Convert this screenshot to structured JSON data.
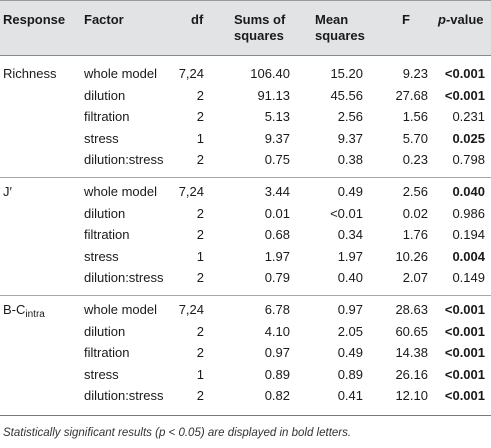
{
  "headers": {
    "response": "Response",
    "factor": "Factor",
    "df": "df",
    "ss_line1": "Sums of",
    "ss_line2": "squares",
    "ms_line1": "Mean",
    "ms_line2": "squares",
    "f": "F",
    "p_italic": "p",
    "p_rest": "-value"
  },
  "groups": [
    {
      "response": "Richness",
      "response_sub": "",
      "rows": [
        {
          "factor": "whole model",
          "df": "7,24",
          "ss": "106.40",
          "ms": "15.20",
          "f": "9.23",
          "p": "<0.001",
          "p_bold": true
        },
        {
          "factor": "dilution",
          "df": "2",
          "ss": "91.13",
          "ms": "45.56",
          "f": "27.68",
          "p": "<0.001",
          "p_bold": true
        },
        {
          "factor": "filtration",
          "df": "2",
          "ss": "5.13",
          "ms": "2.56",
          "f": "1.56",
          "p": "0.231",
          "p_bold": false
        },
        {
          "factor": "stress",
          "df": "1",
          "ss": "9.37",
          "ms": "9.37",
          "f": "5.70",
          "p": "0.025",
          "p_bold": true
        },
        {
          "factor": "dilution:stress",
          "df": "2",
          "ss": "0.75",
          "ms": "0.38",
          "f": "0.23",
          "p": "0.798",
          "p_bold": false
        }
      ]
    },
    {
      "response": "J′",
      "response_sub": "",
      "rows": [
        {
          "factor": "whole model",
          "df": "7,24",
          "ss": "3.44",
          "ms": "0.49",
          "f": "2.56",
          "p": "0.040",
          "p_bold": true
        },
        {
          "factor": "dilution",
          "df": "2",
          "ss": "0.01",
          "ms": "<0.01",
          "f": "0.02",
          "p": "0.986",
          "p_bold": false
        },
        {
          "factor": "filtration",
          "df": "2",
          "ss": "0.68",
          "ms": "0.34",
          "f": "1.76",
          "p": "0.194",
          "p_bold": false
        },
        {
          "factor": "stress",
          "df": "1",
          "ss": "1.97",
          "ms": "1.97",
          "f": "10.26",
          "p": "0.004",
          "p_bold": true
        },
        {
          "factor": "dilution:stress",
          "df": "2",
          "ss": "0.79",
          "ms": "0.40",
          "f": "2.07",
          "p": "0.149",
          "p_bold": false
        }
      ]
    },
    {
      "response": "B-C",
      "response_sub": "intra",
      "rows": [
        {
          "factor": "whole model",
          "df": "7,24",
          "ss": "6.78",
          "ms": "0.97",
          "f": "28.63",
          "p": "<0.001",
          "p_bold": true
        },
        {
          "factor": "dilution",
          "df": "2",
          "ss": "4.10",
          "ms": "2.05",
          "f": "60.65",
          "p": "<0.001",
          "p_bold": true
        },
        {
          "factor": "filtration",
          "df": "2",
          "ss": "0.97",
          "ms": "0.49",
          "f": "14.38",
          "p": "<0.001",
          "p_bold": true
        },
        {
          "factor": "stress",
          "df": "1",
          "ss": "0.89",
          "ms": "0.89",
          "f": "26.16",
          "p": "<0.001",
          "p_bold": true
        },
        {
          "factor": "dilution:stress",
          "df": "2",
          "ss": "0.82",
          "ms": "0.41",
          "f": "12.10",
          "p": "<0.001",
          "p_bold": true
        }
      ]
    }
  ],
  "footnote": {
    "before": "Statistically significant results (",
    "p": "p",
    "after": " < 0.05) are displayed in bold letters."
  }
}
